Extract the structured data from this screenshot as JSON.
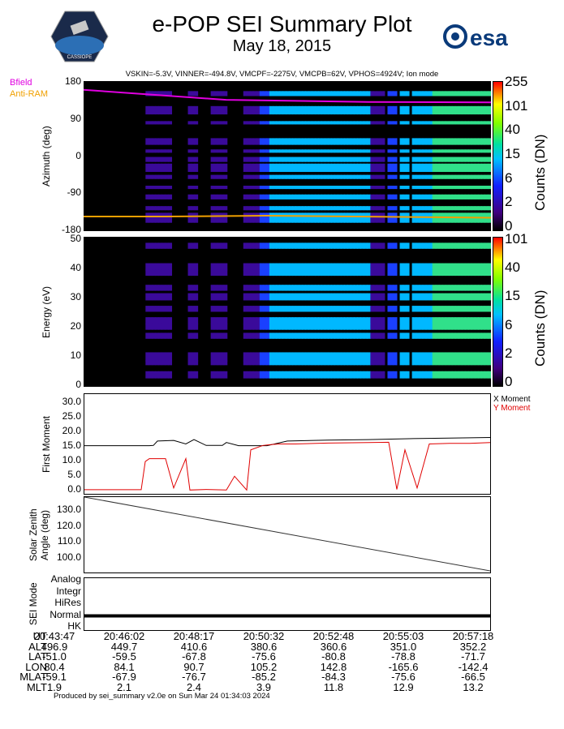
{
  "header": {
    "title": "e-POP SEI Summary Plot",
    "date": "May 18, 2015",
    "params": "VSKIN=-5.3V, VINNER=-494.8V, VMCPF=-2275V, VMCPB=62V, VPHOS=4924V; Ion mode",
    "logo_left": "CASSIOPE",
    "logo_right": "esa"
  },
  "legend": {
    "bfield": "Bfield",
    "antiram": "Anti-RAM"
  },
  "colors": {
    "bfield": "#e000e0",
    "antiram": "#f0a000",
    "x_moment": "#000000",
    "y_moment": "#e00000"
  },
  "chart_data": [
    {
      "type": "heatmap",
      "name": "azimuth",
      "ylabel": "Azimuth (deg)",
      "ylim": [
        -180,
        180
      ],
      "yticks": [
        "180",
        "90",
        "0",
        "-90",
        "-180"
      ],
      "colorbar_label": "Counts (DN)",
      "colorbar_ticks": [
        "255",
        "101",
        "40",
        "15",
        "6",
        "2",
        "0"
      ],
      "bands": [
        {
          "center": 150,
          "half": 6
        },
        {
          "center": 110,
          "half": 10
        },
        {
          "center": 80,
          "half": 4
        },
        {
          "center": 35,
          "half": 8
        },
        {
          "center": 12,
          "half": 4
        },
        {
          "center": -8,
          "half": 6
        },
        {
          "center": -28,
          "half": 10
        },
        {
          "center": -50,
          "half": 5
        },
        {
          "center": -75,
          "half": 4
        },
        {
          "center": -98,
          "half": 6
        },
        {
          "center": -125,
          "half": 5
        },
        {
          "center": -148,
          "half": 12
        }
      ],
      "bfield_line": {
        "x": [
          0,
          0.35,
          0.7,
          1.0
        ],
        "y": [
          159,
          135,
          130,
          129
        ]
      },
      "antiram_line": {
        "x": [
          0,
          0.2,
          0.45,
          1.0
        ],
        "y": [
          -145,
          -145,
          -143,
          -148
        ]
      }
    },
    {
      "type": "heatmap",
      "name": "energy",
      "ylabel": "Energy (eV)",
      "ylim": [
        0,
        50
      ],
      "yticks": [
        "50",
        "40",
        "30",
        "20",
        "10",
        "0"
      ],
      "colorbar_label": "Counts (DN)",
      "colorbar_ticks": [
        "101",
        "40",
        "15",
        "6",
        "2",
        "0"
      ],
      "bands": [
        {
          "center": 47,
          "half": 1
        },
        {
          "center": 40,
          "half": 1.2
        },
        {
          "center": 38,
          "half": 1
        },
        {
          "center": 33,
          "half": 1
        },
        {
          "center": 30,
          "half": 1.2
        },
        {
          "center": 26,
          "half": 1
        },
        {
          "center": 22,
          "half": 1.2
        },
        {
          "center": 20,
          "half": 1
        },
        {
          "center": 17,
          "half": 1
        },
        {
          "center": 10,
          "half": 1.5
        },
        {
          "center": 8,
          "half": 0.8
        },
        {
          "center": 4,
          "half": 1.2
        }
      ]
    },
    {
      "type": "line",
      "name": "first_moment",
      "ylabel": "First Moment",
      "ylim": [
        -1,
        33
      ],
      "yticks": [
        "30.0",
        "25.0",
        "20.0",
        "15.0",
        "10.0",
        "5.0",
        "0.0"
      ],
      "series": [
        {
          "name": "X Moment",
          "x": [
            0,
            0.16,
            0.17,
            0.18,
            0.22,
            0.25,
            0.27,
            0.3,
            0.34,
            0.35,
            0.38,
            0.45,
            0.5,
            0.6,
            0.7,
            0.8,
            0.9,
            1.0
          ],
          "y": [
            15.4,
            15.4,
            15.5,
            17,
            17.2,
            16,
            17.5,
            15.5,
            15.5,
            16.5,
            15.4,
            15.4,
            17,
            17.3,
            17.5,
            17.8,
            18,
            18.2
          ]
        },
        {
          "name": "Y Moment",
          "x": [
            0,
            0.14,
            0.15,
            0.16,
            0.2,
            0.22,
            0.25,
            0.26,
            0.3,
            0.35,
            0.37,
            0.4,
            0.41,
            0.44,
            0.46,
            0.48,
            0.52,
            0.6,
            0.7,
            0.75,
            0.77,
            0.79,
            0.82,
            0.85,
            0.9,
            0.95,
            1.0
          ],
          "y": [
            0.4,
            0.4,
            10,
            11,
            11,
            1,
            11,
            0.3,
            0.5,
            0.3,
            5,
            0.3,
            14,
            15.5,
            15.8,
            16,
            16,
            16.3,
            16.5,
            16.6,
            0.5,
            14,
            1,
            16,
            16.2,
            16.2,
            16.5
          ]
        }
      ]
    },
    {
      "type": "line",
      "name": "solar_zenith",
      "ylabel": "Solar Zenith Angle (deg)",
      "ylim": [
        91,
        139
      ],
      "yticks": [
        "130.0",
        "120.0",
        "110.0",
        "100.0"
      ],
      "series": [
        {
          "name": "SZA",
          "x": [
            0,
            1
          ],
          "y": [
            139,
            92
          ]
        }
      ]
    },
    {
      "type": "line",
      "name": "sei_mode",
      "ylabel": "SEI Mode",
      "yticks": [
        "Analog",
        "Integr",
        "HiRes",
        "Normal",
        "HK"
      ],
      "series": [
        {
          "name": "mode",
          "x": [
            0,
            1
          ],
          "y": [
            "Normal",
            "Normal"
          ]
        }
      ]
    }
  ],
  "table": {
    "rows": [
      {
        "label": "UT",
        "values": [
          "20:43:47",
          "20:46:02",
          "20:48:17",
          "20:50:32",
          "20:52:48",
          "20:55:03",
          "20:57:18"
        ]
      },
      {
        "label": "ALT",
        "values": [
          "496.9",
          "449.7",
          "410.6",
          "380.6",
          "360.6",
          "351.0",
          "352.2"
        ]
      },
      {
        "label": "LAT",
        "values": [
          "-51.0",
          "-59.5",
          "-67.8",
          "-75.6",
          "-80.8",
          "-78.8",
          "-71.7"
        ]
      },
      {
        "label": "LON",
        "values": [
          "80.4",
          "84.1",
          "90.7",
          "105.2",
          "142.8",
          "-165.6",
          "-142.4"
        ]
      },
      {
        "label": "MLAT",
        "values": [
          "-59.1",
          "-67.9",
          "-76.7",
          "-85.2",
          "-84.3",
          "-75.6",
          "-66.5"
        ]
      },
      {
        "label": "MLT",
        "values": [
          "1.9",
          "2.1",
          "2.4",
          "3.9",
          "11.8",
          "12.9",
          "13.2"
        ]
      }
    ]
  },
  "footer": "Produced by sei_summary v2.0e on Sun Mar 24 01:34:03 2024"
}
